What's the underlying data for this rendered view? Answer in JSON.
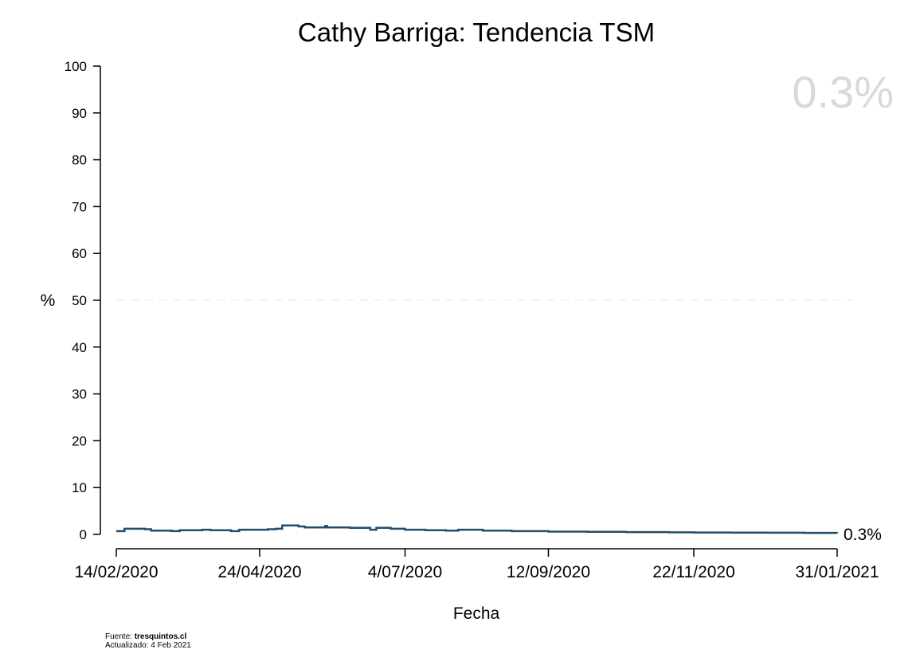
{
  "chart_data": {
    "type": "line",
    "title": "Cathy Barriga: Tendencia TSM",
    "xlabel": "Fecha",
    "ylabel": "%",
    "ylim": [
      0,
      100
    ],
    "yticks": [
      0,
      10,
      20,
      30,
      40,
      50,
      60,
      70,
      80,
      90,
      100
    ],
    "xlim": [
      "2020-02-14",
      "2021-01-31"
    ],
    "xticks": [
      {
        "date": "2020-02-14",
        "label": "14/02/2020"
      },
      {
        "date": "2020-04-24",
        "label": "24/04/2020"
      },
      {
        "date": "2020-07-04",
        "label": "4/07/2020"
      },
      {
        "date": "2020-09-12",
        "label": "12/09/2020"
      },
      {
        "date": "2020-11-22",
        "label": "22/11/2020"
      },
      {
        "date": "2021-01-31",
        "label": "31/01/2021"
      }
    ],
    "reference_line": 50,
    "grid": false,
    "line_color": "#1f4e6e",
    "big_value": "0.3%",
    "end_label": "0.3%",
    "series": [
      {
        "x": [
          "2020-02-14",
          "2020-02-18",
          "2020-02-28",
          "2020-03-02",
          "2020-03-12",
          "2020-03-16",
          "2020-03-27",
          "2020-03-31",
          "2020-04-10",
          "2020-04-14",
          "2020-04-28",
          "2020-05-02",
          "2020-05-05",
          "2020-05-13",
          "2020-05-16",
          "2020-05-26",
          "2020-05-27",
          "2020-06-07",
          "2020-06-17",
          "2020-06-20",
          "2020-06-27",
          "2020-07-04",
          "2020-07-14",
          "2020-07-24",
          "2020-07-30",
          "2020-08-11",
          "2020-08-25",
          "2020-09-12",
          "2020-10-01",
          "2020-10-20",
          "2020-11-10",
          "2020-11-22",
          "2020-12-10",
          "2020-12-28",
          "2021-01-15",
          "2021-01-31"
        ],
        "y": [
          0.7,
          1.2,
          1.1,
          0.8,
          0.7,
          0.9,
          1.0,
          0.9,
          0.7,
          1.0,
          1.1,
          1.2,
          1.9,
          1.7,
          1.5,
          1.8,
          1.5,
          1.4,
          1.0,
          1.4,
          1.2,
          1.0,
          0.9,
          0.8,
          1.0,
          0.8,
          0.7,
          0.6,
          0.55,
          0.5,
          0.45,
          0.4,
          0.38,
          0.35,
          0.32,
          0.3
        ]
      }
    ]
  },
  "footer": {
    "source_prefix": "Fuente: ",
    "source_name": "tresquintos.cl",
    "updated": "Actualizado: 4 Feb 2021"
  }
}
